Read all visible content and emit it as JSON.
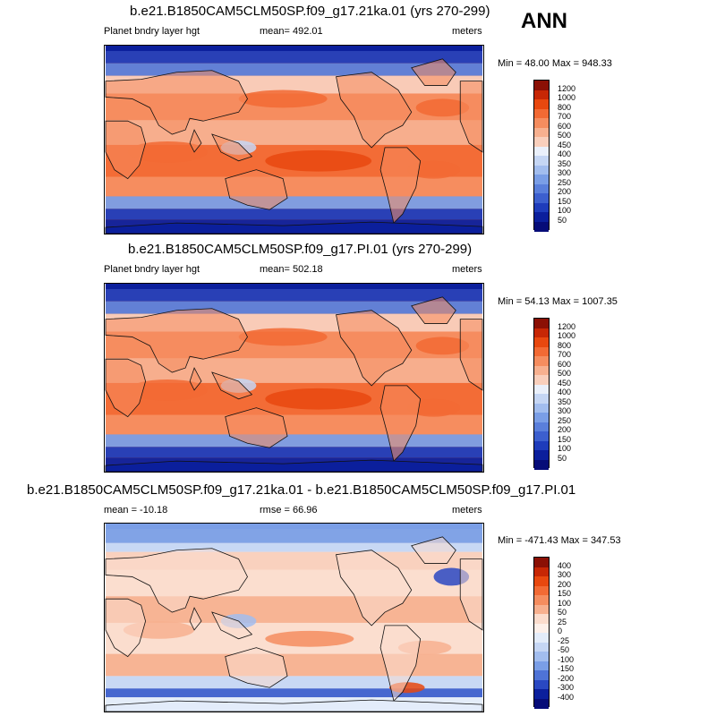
{
  "season": "ANN",
  "panels": [
    {
      "id": "top",
      "title": "b.e21.B1850CAM5CLM50SP.f09_g17.21ka.01 (yrs 270-299)",
      "left_label": "Planet bndry layer hgt",
      "center_label": "mean= 492.01",
      "units": "meters",
      "minmax": "Min =  48.00 Max = 948.33",
      "levels": [
        "1200",
        "1000",
        "800",
        "700",
        "600",
        "500",
        "450",
        "400",
        "350",
        "300",
        "250",
        "200",
        "150",
        "100",
        "50"
      ],
      "colors": [
        "#8b1005",
        "#c72705",
        "#e8480f",
        "#f26a34",
        "#f58d5f",
        "#f7b08f",
        "#f9cfbc",
        "#eaf0fb",
        "#c5d6f4",
        "#a2bdee",
        "#7a9ee6",
        "#5a7fdb",
        "#3c5fce",
        "#1e3cbb",
        "#0b1f9c",
        "#060c78"
      ]
    },
    {
      "id": "middle",
      "title": "b.e21.B1850CAM5CLM50SP.f09_g17.PI.01 (yrs 270-299)",
      "left_label": "Planet bndry layer hgt",
      "center_label": "mean= 502.18",
      "units": "meters",
      "minmax": "Min =  54.13 Max = 1007.35",
      "levels": [
        "1200",
        "1000",
        "800",
        "700",
        "600",
        "500",
        "450",
        "400",
        "350",
        "300",
        "250",
        "200",
        "150",
        "100",
        "50"
      ],
      "colors": [
        "#8b1005",
        "#c72705",
        "#e8480f",
        "#f26a34",
        "#f58d5f",
        "#f7b08f",
        "#f9cfbc",
        "#eaf0fb",
        "#c5d6f4",
        "#a2bdee",
        "#7a9ee6",
        "#5a7fdb",
        "#3c5fce",
        "#1e3cbb",
        "#0b1f9c",
        "#060c78"
      ]
    },
    {
      "id": "bottom",
      "title": "b.e21.B1850CAM5CLM50SP.f09_g17.21ka.01 - b.e21.B1850CAM5CLM50SP.f09_g17.PI.01",
      "left_label": "mean = -10.18",
      "center_label": "rmse =  66.96",
      "units": "meters",
      "minmax": "Min = -471.43 Max = 347.53",
      "levels": [
        "400",
        "300",
        "200",
        "150",
        "100",
        "50",
        "25",
        "0",
        "-25",
        "-50",
        "-100",
        "-150",
        "-200",
        "-300",
        "-400"
      ],
      "colors": [
        "#8b1005",
        "#c72705",
        "#e8480f",
        "#f26a34",
        "#f58d5f",
        "#f7b08f",
        "#fbdccd",
        "#fdf0ea",
        "#e3ecfa",
        "#c5d6f4",
        "#a2bdee",
        "#7a9ee6",
        "#4f73d6",
        "#2a48c2",
        "#0b1f9c",
        "#060c78"
      ]
    }
  ],
  "chart_data": [
    {
      "type": "heatmap",
      "title": "b.e21.B1850CAM5CLM50SP.f09_g17.21ka.01 (yrs 270-299)",
      "variable": "Planet bndry layer hgt",
      "units": "meters",
      "mean": 492.01,
      "min": 48.0,
      "max": 948.33,
      "contour_levels": [
        50,
        100,
        150,
        200,
        250,
        300,
        350,
        400,
        450,
        500,
        600,
        700,
        800,
        1000,
        1200
      ]
    },
    {
      "type": "heatmap",
      "title": "b.e21.B1850CAM5CLM50SP.f09_g17.PI.01 (yrs 270-299)",
      "variable": "Planet bndry layer hgt",
      "units": "meters",
      "mean": 502.18,
      "min": 54.13,
      "max": 1007.35,
      "contour_levels": [
        50,
        100,
        150,
        200,
        250,
        300,
        350,
        400,
        450,
        500,
        600,
        700,
        800,
        1000,
        1200
      ]
    },
    {
      "type": "heatmap",
      "title": "b.e21.B1850CAM5CLM50SP.f09_g17.21ka.01 - b.e21.B1850CAM5CLM50SP.f09_g17.PI.01",
      "units": "meters",
      "mean": -10.18,
      "rmse": 66.96,
      "min": -471.43,
      "max": 347.53,
      "contour_levels": [
        -400,
        -300,
        -200,
        -150,
        -100,
        -50,
        -25,
        0,
        25,
        50,
        100,
        150,
        200,
        300,
        400
      ]
    }
  ]
}
